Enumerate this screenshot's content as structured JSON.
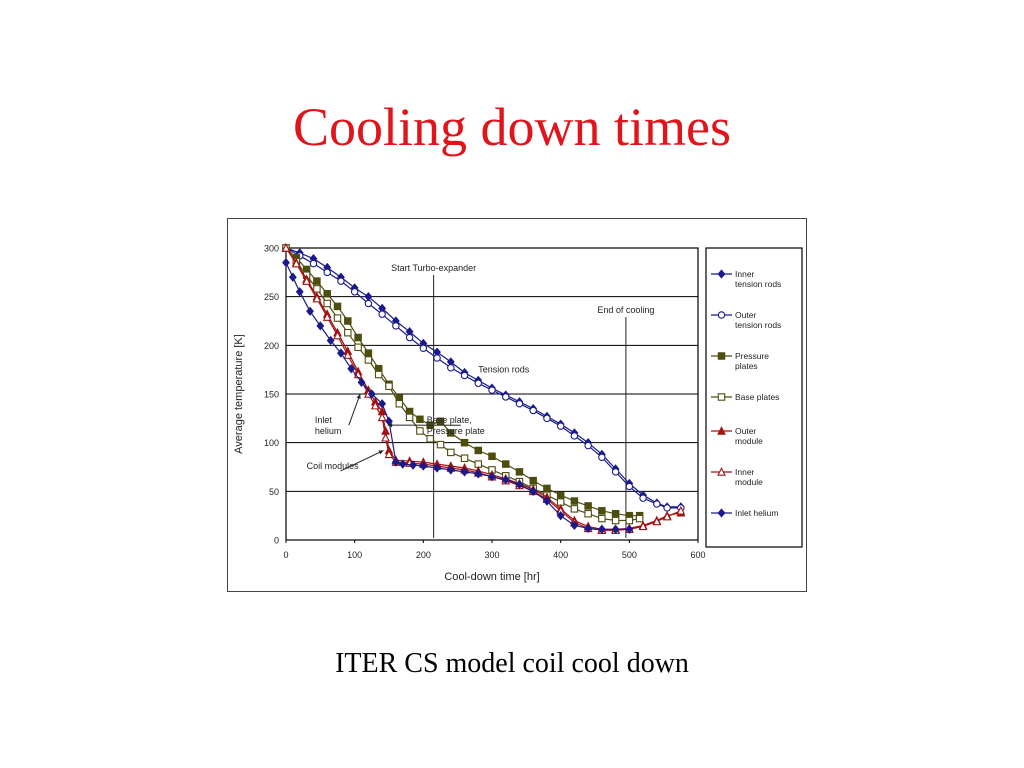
{
  "slide": {
    "title": "Cooling down times",
    "caption": "ITER CS model coil cool down"
  },
  "colors": {
    "navy": "#1a1a8c",
    "olive": "#4d4d0f",
    "darkred": "#a11212"
  },
  "chart_data": {
    "type": "line",
    "title": "",
    "xlabel": "Cool-down time [hr]",
    "ylabel": "Average temperature [K]",
    "xlim": [
      0,
      600
    ],
    "ylim": [
      0,
      300
    ],
    "xticks": [
      "0",
      "100",
      "200",
      "300",
      "400",
      "500",
      "600"
    ],
    "yticks": [
      "0",
      "50",
      "100",
      "150",
      "200",
      "250",
      "300"
    ],
    "grid": "horizontal",
    "legend_position": "right",
    "series": [
      {
        "name": "Inner tension rods",
        "color": "#1a1a8c",
        "marker": "diamond-filled",
        "x": [
          0,
          20,
          40,
          60,
          80,
          100,
          120,
          140,
          160,
          180,
          200,
          220,
          240,
          260,
          280,
          300,
          320,
          340,
          360,
          380,
          400,
          420,
          440,
          460,
          480,
          500,
          520,
          540,
          555,
          575
        ],
        "y": [
          300,
          295,
          289,
          280,
          270,
          259,
          250,
          238,
          225,
          214,
          202,
          193,
          183,
          172,
          164,
          156,
          149,
          142,
          135,
          127,
          119,
          110,
          100,
          88,
          73,
          58,
          46,
          38,
          34,
          34
        ]
      },
      {
        "name": "Outer tension rods",
        "color": "#1a1a8c",
        "marker": "circle-open",
        "x": [
          0,
          20,
          40,
          60,
          80,
          100,
          120,
          140,
          160,
          180,
          200,
          220,
          240,
          260,
          280,
          300,
          320,
          340,
          360,
          380,
          400,
          420,
          440,
          460,
          480,
          500,
          520,
          540,
          555,
          575
        ],
        "y": [
          300,
          292,
          284,
          275,
          266,
          255,
          243,
          232,
          220,
          208,
          197,
          187,
          177,
          169,
          161,
          154,
          147,
          140,
          133,
          125,
          117,
          107,
          97,
          85,
          70,
          55,
          43,
          37,
          33,
          33
        ]
      },
      {
        "name": "Pressure plates",
        "color": "#4d4d0f",
        "marker": "square-filled",
        "x": [
          0,
          15,
          30,
          45,
          60,
          75,
          90,
          105,
          120,
          135,
          150,
          165,
          180,
          195,
          210,
          225,
          240,
          260,
          280,
          300,
          320,
          340,
          360,
          380,
          400,
          420,
          440,
          460,
          480,
          500,
          515
        ],
        "y": [
          300,
          290,
          278,
          266,
          253,
          240,
          225,
          208,
          192,
          176,
          160,
          146,
          132,
          124,
          118,
          122,
          110,
          100,
          92,
          86,
          78,
          70,
          61,
          53,
          46,
          40,
          35,
          30,
          27,
          25,
          25
        ]
      },
      {
        "name": "Base plates",
        "color": "#4d4d0f",
        "marker": "square-open",
        "x": [
          0,
          15,
          30,
          45,
          60,
          75,
          90,
          105,
          120,
          135,
          150,
          165,
          180,
          195,
          210,
          225,
          240,
          260,
          280,
          300,
          320,
          340,
          360,
          380,
          400,
          420,
          440,
          460,
          480,
          500,
          515
        ],
        "y": [
          300,
          286,
          272,
          258,
          243,
          228,
          213,
          198,
          185,
          170,
          158,
          140,
          126,
          112,
          104,
          98,
          90,
          84,
          78,
          72,
          66,
          60,
          53,
          46,
          39,
          32,
          27,
          22,
          20,
          20,
          22
        ]
      },
      {
        "name": "Outer module",
        "color": "#a11212",
        "marker": "triangle-filled",
        "x": [
          0,
          15,
          30,
          45,
          60,
          75,
          90,
          105,
          120,
          130,
          140,
          145,
          150,
          160,
          180,
          200,
          220,
          240,
          260,
          280,
          300,
          320,
          340,
          360,
          380,
          400,
          420,
          440,
          460,
          480,
          500,
          520,
          540,
          555,
          575
        ],
        "y": [
          300,
          285,
          268,
          250,
          232,
          213,
          194,
          173,
          154,
          142,
          132,
          112,
          92,
          82,
          81,
          80,
          78,
          76,
          74,
          71,
          67,
          63,
          58,
          52,
          44,
          32,
          20,
          14,
          11,
          11,
          12,
          15,
          20,
          25,
          28
        ]
      },
      {
        "name": "Inner module",
        "color": "#a11212",
        "marker": "triangle-open",
        "x": [
          0,
          15,
          30,
          45,
          60,
          75,
          90,
          105,
          120,
          130,
          140,
          145,
          150,
          160,
          180,
          200,
          220,
          240,
          260,
          280,
          300,
          320,
          340,
          360,
          380,
          400,
          420,
          440,
          460,
          480,
          500,
          520,
          540,
          555,
          575
        ],
        "y": [
          300,
          284,
          266,
          248,
          229,
          210,
          190,
          170,
          150,
          138,
          126,
          105,
          88,
          80,
          79,
          78,
          76,
          74,
          72,
          69,
          65,
          61,
          56,
          50,
          42,
          30,
          18,
          12,
          10,
          10,
          11,
          14,
          19,
          24,
          30
        ]
      },
      {
        "name": "Inlet helium",
        "color": "#1a1a8c",
        "marker": "diamond-filled",
        "x": [
          0,
          10,
          20,
          35,
          50,
          65,
          80,
          95,
          110,
          125,
          140,
          150,
          160,
          170,
          185,
          200,
          220,
          240,
          260,
          280,
          300,
          320,
          340,
          360,
          380,
          400,
          420,
          440,
          460,
          480,
          500
        ],
        "y": [
          285,
          270,
          255,
          235,
          220,
          205,
          192,
          176,
          162,
          150,
          140,
          122,
          80,
          78,
          77,
          76,
          74,
          72,
          70,
          68,
          65,
          62,
          57,
          50,
          40,
          25,
          15,
          12,
          11,
          11,
          11
        ]
      }
    ],
    "legend": [
      {
        "series": 0,
        "lines": [
          "Inner",
          "tension rods"
        ]
      },
      {
        "series": 1,
        "lines": [
          "Outer",
          "tension rods"
        ]
      },
      {
        "series": 2,
        "lines": [
          "Pressure",
          "plates"
        ]
      },
      {
        "series": 3,
        "lines": [
          "Base plates"
        ]
      },
      {
        "series": 4,
        "lines": [
          "Outer",
          "module"
        ]
      },
      {
        "series": 5,
        "lines": [
          "Inner",
          "module"
        ]
      },
      {
        "series": 6,
        "lines": [
          "Inlet helium"
        ]
      }
    ],
    "markers_vertical": [
      {
        "x": 215,
        "label": "Start Turbo-expander"
      },
      {
        "x": 495,
        "label": "End of cooling"
      }
    ],
    "annotations": [
      {
        "lines": [
          "Tension rods"
        ],
        "x": 280,
        "y": 172
      },
      {
        "lines": [
          "Inlet",
          "helium"
        ],
        "x": 42,
        "y": 120,
        "arrow_to": [
          108,
          150
        ]
      },
      {
        "lines": [
          "Base plate,",
          "Pressure plate"
        ],
        "x": 205,
        "y": 120,
        "arrow_to": [
          148,
          118
        ]
      },
      {
        "lines": [
          "Coil modules"
        ],
        "x": 30,
        "y": 73,
        "arrow_to": [
          142,
          92
        ]
      }
    ]
  }
}
